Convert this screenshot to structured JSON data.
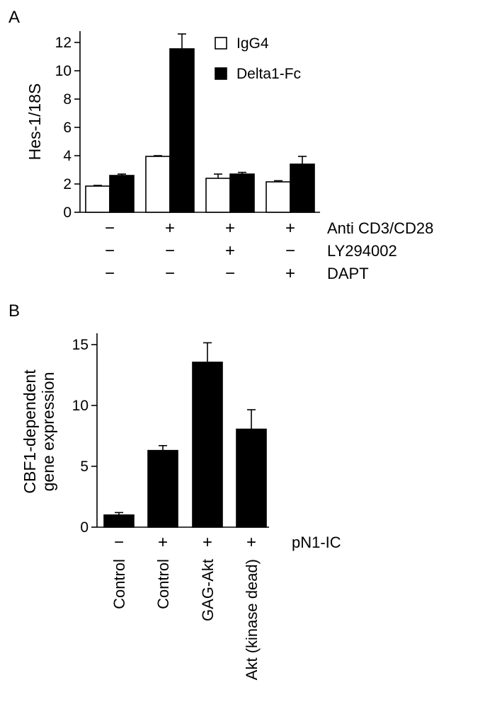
{
  "panels": [
    {
      "letter": "A",
      "chart_data": {
        "type": "bar",
        "ylabel": "Hes-1/18S",
        "ylim": [
          0,
          13
        ],
        "yticks": [
          0,
          2,
          4,
          6,
          8,
          10,
          12
        ],
        "groups": 4,
        "series": [
          {
            "name": "IgG4",
            "color": "#ffffff",
            "values": [
              1.85,
              3.95,
              2.4,
              2.15
            ],
            "errors": [
              0.05,
              0.05,
              0.3,
              0.08
            ]
          },
          {
            "name": "Delta1-Fc",
            "color": "#000000",
            "values": [
              2.6,
              11.55,
              2.7,
              3.4
            ],
            "errors": [
              0.1,
              1.05,
              0.12,
              0.55
            ]
          }
        ],
        "conditions": [
          {
            "label": "Anti CD3/CD28",
            "signs": [
              "−",
              "+",
              "+",
              "+"
            ]
          },
          {
            "label": "LY294002",
            "signs": [
              "−",
              "−",
              "+",
              "−"
            ]
          },
          {
            "label": "DAPT",
            "signs": [
              "−",
              "−",
              "−",
              "+"
            ]
          }
        ]
      }
    },
    {
      "letter": "B",
      "chart_data": {
        "type": "bar",
        "ylabel": [
          "CBF1-dependent",
          "gene expression"
        ],
        "ylim": [
          0,
          16
        ],
        "yticks": [
          0,
          5,
          10,
          15
        ],
        "categories": [
          "Control",
          "Control",
          "GAG-Akt",
          "Akt (kinase dead)"
        ],
        "values": [
          1.0,
          6.3,
          13.55,
          8.05
        ],
        "errors": [
          0.2,
          0.4,
          1.6,
          1.6
        ],
        "color": "#000000",
        "conditions": [
          {
            "label": "pN1-IC",
            "signs": [
              "−",
              "+",
              "+",
              "+"
            ]
          }
        ]
      }
    }
  ]
}
